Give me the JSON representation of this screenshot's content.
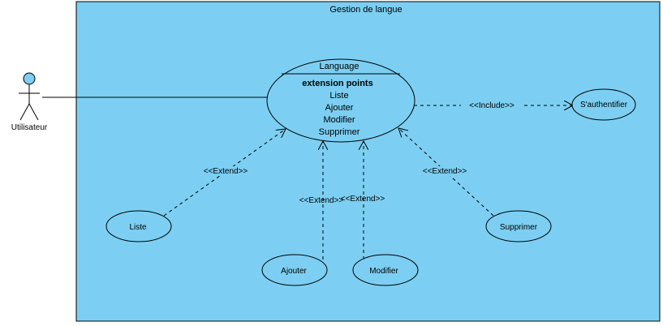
{
  "diagram": {
    "system_title": "Gestion de langue",
    "colors": {
      "system_fill": "#7ccff2",
      "usecase_fill": "#7ccff2",
      "actor_head": "#7ccff2",
      "stroke": "#000000"
    },
    "actor": {
      "name": "Utilisateur",
      "icon": "stick-figure-icon"
    },
    "main_usecase": {
      "name": "Language",
      "extension_points_title": "extension points",
      "extension_points": [
        "Liste",
        "Ajouter",
        "Modifier",
        "Supprimer"
      ]
    },
    "usecases": {
      "authenticate": "S'authentifier",
      "liste": "Liste",
      "ajouter": "Ajouter",
      "modifier": "Modifier",
      "supprimer": "Supprimer"
    },
    "relations": {
      "include": "<<Include>>",
      "extend_liste": "<<Extend>>",
      "extend_ajouter": "<<Extend>>",
      "extend_modifier": "<<Extend>>",
      "extend_supprimer": "<<Extend>>"
    }
  }
}
